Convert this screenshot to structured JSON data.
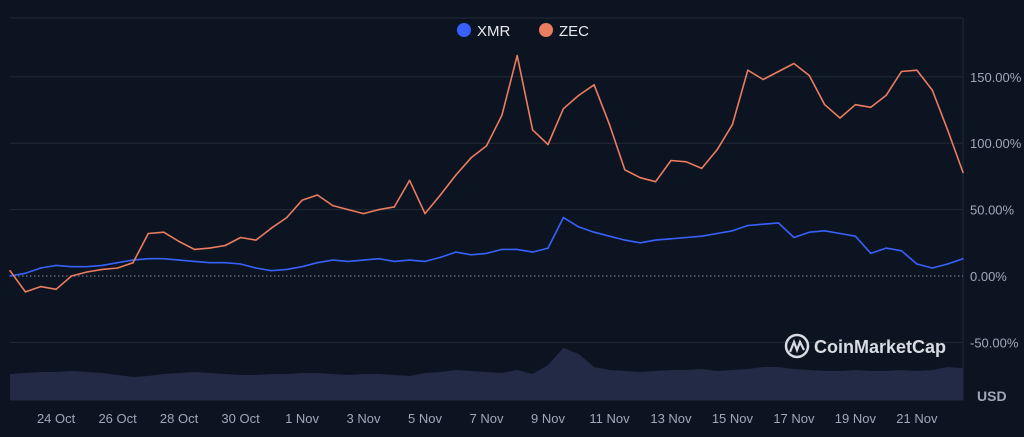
{
  "chart_data": {
    "type": "line",
    "title": "",
    "x_start": "22 Oct 12:00",
    "x_step_hours": 12,
    "x_tick_labels": [
      "24 Oct",
      "26 Oct",
      "28 Oct",
      "30 Oct",
      "1 Nov",
      "3 Nov",
      "5 Nov",
      "7 Nov",
      "9 Nov",
      "11 Nov",
      "13 Nov",
      "15 Nov",
      "17 Nov",
      "19 Nov",
      "21 Nov"
    ],
    "x_tick_days_from_start": [
      1.5,
      3.5,
      5.5,
      7.5,
      9.5,
      11.5,
      13.5,
      15.5,
      17.5,
      19.5,
      21.5,
      23.5,
      25.5,
      27.5,
      29.5
    ],
    "y_tick_labels": [
      "150.00%",
      "100.00%",
      "50.00%",
      "0.00%",
      "-50.00%"
    ],
    "y_ticks": [
      150,
      100,
      50,
      0,
      -50
    ],
    "ylim": [
      -60,
      190
    ],
    "grid": true,
    "legend": "top-center",
    "volume_label": "USD",
    "watermark": "CoinMarketCap",
    "series": [
      {
        "name": "XMR",
        "color": "#3861fb",
        "values": [
          0,
          2,
          6,
          8,
          7,
          7,
          8,
          10,
          12,
          13,
          13,
          12,
          11,
          10,
          10,
          9,
          6,
          4,
          5,
          7,
          10,
          12,
          11,
          12,
          13,
          11,
          12,
          11,
          14,
          18,
          16,
          17,
          20,
          20,
          18,
          21,
          44,
          37,
          33,
          30,
          27,
          25,
          27,
          28,
          29,
          30,
          32,
          34,
          38,
          39,
          40,
          29,
          33,
          34,
          32,
          30,
          17,
          21,
          19,
          9,
          6,
          9,
          13
        ]
      },
      {
        "name": "ZEC",
        "color": "#ea7c5f",
        "values": [
          4,
          -12,
          -8,
          -10,
          0,
          3,
          5,
          6,
          10,
          32,
          33,
          26,
          20,
          21,
          23,
          29,
          27,
          36,
          44,
          57,
          61,
          53,
          50,
          47,
          50,
          52,
          72,
          47,
          61,
          76,
          89,
          98,
          121,
          166,
          110,
          99,
          126,
          136,
          144,
          114,
          80,
          74,
          71,
          87,
          86,
          81,
          95,
          114,
          155,
          148,
          154,
          160,
          151,
          129,
          119,
          129,
          127,
          136,
          154,
          155,
          140,
          110,
          78
        ]
      }
    ],
    "volume": {
      "color": "#222a45",
      "values": [
        26,
        27,
        28,
        28,
        29,
        28,
        27,
        25,
        23,
        24,
        26,
        27,
        28,
        27,
        26,
        25,
        25,
        26,
        26,
        27,
        27,
        26,
        25,
        26,
        26,
        25,
        24,
        27,
        28,
        30,
        29,
        28,
        27,
        30,
        26,
        35,
        52,
        46,
        33,
        30,
        29,
        28,
        29,
        30,
        30,
        31,
        29,
        30,
        31,
        33,
        33,
        31,
        30,
        29,
        29,
        30,
        29,
        29,
        30,
        29,
        30,
        33,
        32
      ]
    }
  }
}
